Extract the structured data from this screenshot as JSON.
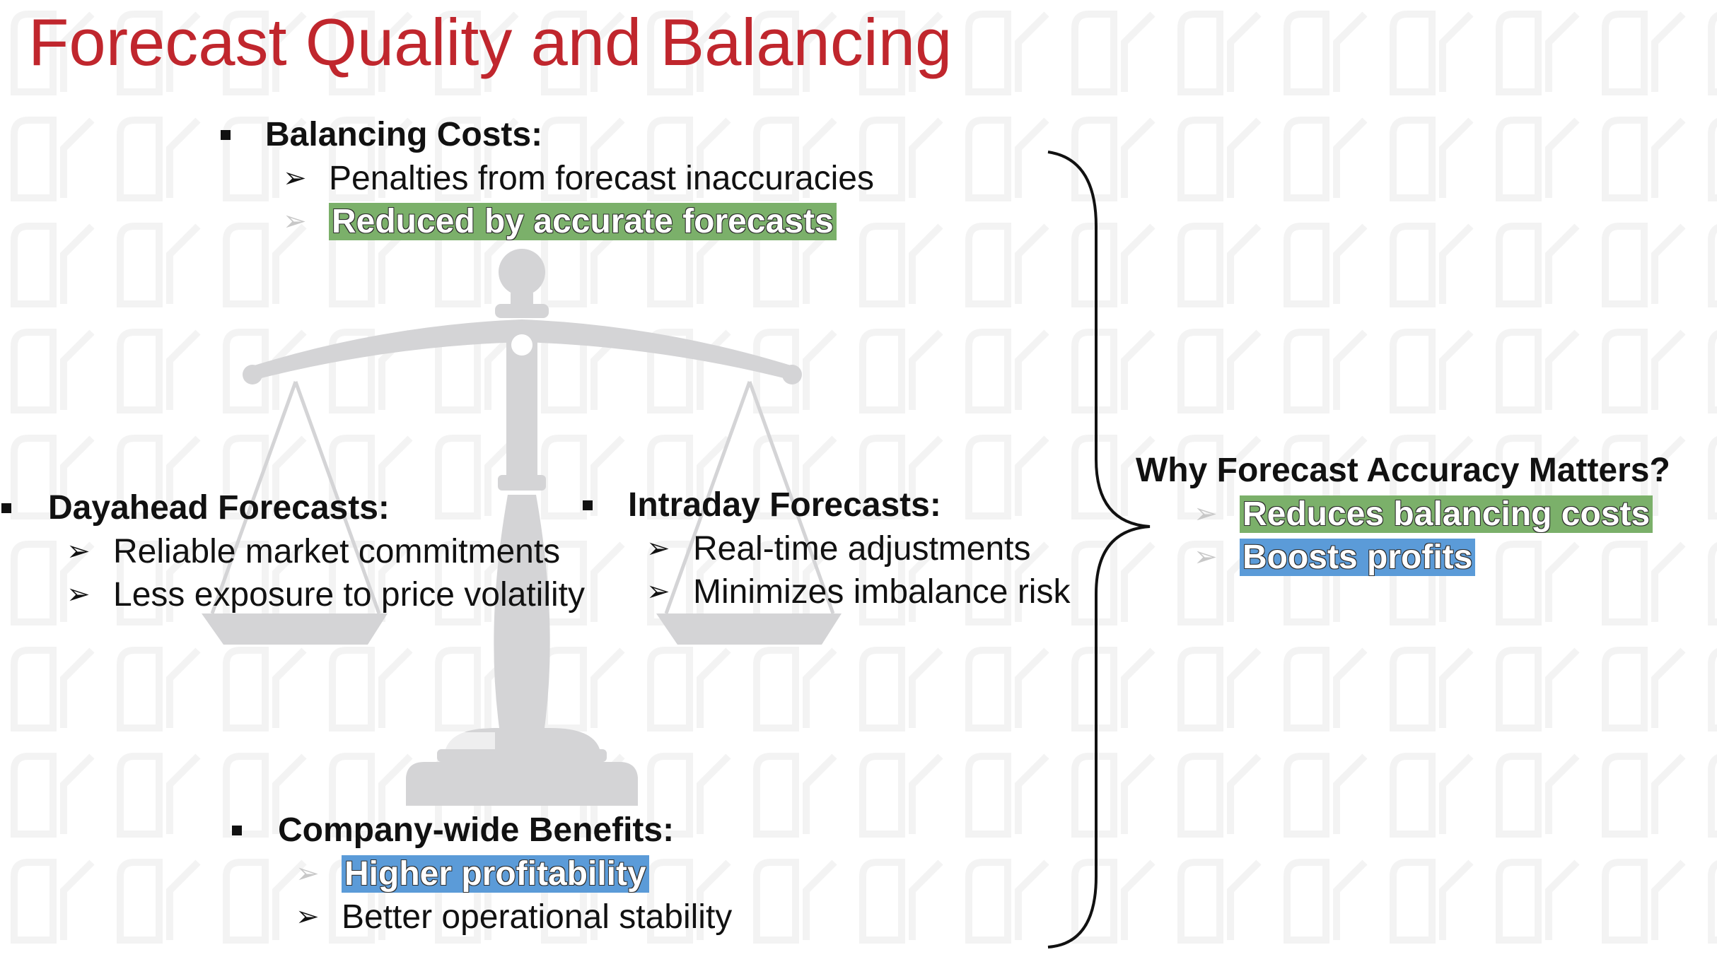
{
  "title": "Forecast Quality and Balancing",
  "balancing": {
    "heading": "Balancing Costs:",
    "items": [
      "Penalties from forecast inaccuracies",
      "Reduced by accurate forecasts"
    ]
  },
  "dayahead": {
    "heading": "Dayahead Forecasts:",
    "items": [
      "Reliable market commitments",
      "Less exposure to price volatility"
    ]
  },
  "intraday": {
    "heading": "Intraday Forecasts:",
    "items": [
      "Real-time adjustments",
      "Minimizes imbalance risk"
    ]
  },
  "company": {
    "heading": "Company-wide Benefits:",
    "items": [
      "Higher profitability",
      "Better operational stability"
    ]
  },
  "why": {
    "heading": "Why Forecast Accuracy Matters?",
    "items": [
      "Reduces balancing costs",
      "Boosts profits"
    ]
  },
  "colors": {
    "title": "#c0262d",
    "highlight_green": "#7bb06a",
    "highlight_blue": "#5b9bd8",
    "scale_gray": "#d4d4d6"
  },
  "icons": [
    "scales-of-justice-icon",
    "curly-brace-icon",
    "arrow-bullet-icon",
    "square-bullet-icon"
  ]
}
